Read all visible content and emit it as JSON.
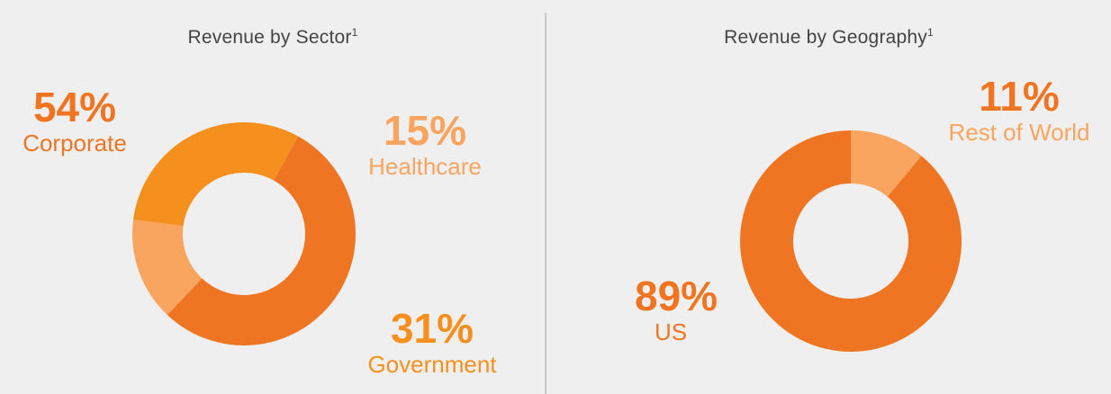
{
  "colors": {
    "dark_orange": "#f07523",
    "light_orange": "#f9a560",
    "mid_orange": "#f5901e"
  },
  "chart_data": [
    {
      "type": "pie",
      "title": "Revenue by Sector",
      "title_superscript": "1",
      "style": "donut",
      "slices": [
        {
          "label": "Corporate",
          "value": 54,
          "display": "54%",
          "color": "#f07523"
        },
        {
          "label": "Healthcare",
          "value": 15,
          "display": "15%",
          "color": "#f9a560"
        },
        {
          "label": "Government",
          "value": 31,
          "display": "31%",
          "color": "#f5901e"
        }
      ]
    },
    {
      "type": "pie",
      "title": "Revenue by Geography",
      "title_superscript": "1",
      "style": "donut",
      "slices": [
        {
          "label": "Rest of World",
          "value": 11,
          "display": "11%",
          "color": "#f9a560"
        },
        {
          "label": "US",
          "value": 89,
          "display": "89%",
          "color": "#f07523"
        }
      ]
    }
  ]
}
